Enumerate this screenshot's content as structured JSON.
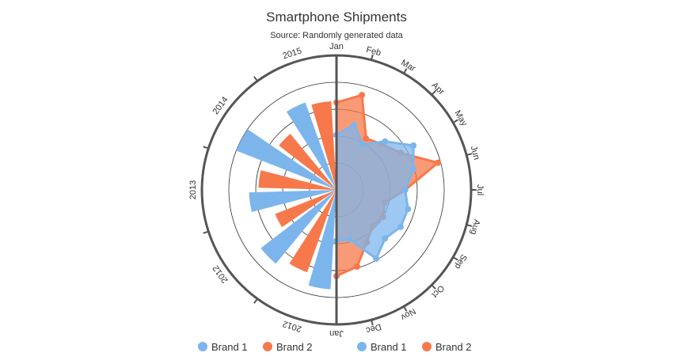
{
  "chart_data": [
    {
      "type": "polar-bar",
      "title": "Smartphone Shipments",
      "subtitle": "Source: Randomly generated data",
      "categories": [
        "2012",
        "2012",
        "2013",
        "2014",
        "2015"
      ],
      "series": [
        {
          "name": "Brand 1",
          "color": "#7cb5ec",
          "values": [
            74,
            71,
            65,
            80,
            69
          ]
        },
        {
          "name": "Brand 2",
          "color": "#f7784a",
          "values": [
            65,
            49,
            58,
            54,
            66
          ]
        }
      ],
      "rlim": [
        0,
        100
      ],
      "rticks": [
        20,
        40,
        60,
        80
      ],
      "grid": true
    },
    {
      "type": "polar-area",
      "categories": [
        "Jan",
        "Feb",
        "Mar",
        "Apr",
        "May",
        "Jun",
        "Jul",
        "Aug",
        "Sep",
        "Oct",
        "Nov",
        "Dec",
        "Jan"
      ],
      "series": [
        {
          "name": "Brand 2",
          "color": "#f7784a",
          "values": [
            65,
            73,
            44,
            48,
            55,
            78,
            51,
            37,
            40,
            38,
            45,
            59,
            64
          ]
        },
        {
          "name": "Brand 1",
          "color": "#7cb5ec",
          "values": [
            41,
            50,
            39,
            51,
            66,
            59,
            51,
            55,
            55,
            51,
            59,
            38,
            38
          ]
        }
      ],
      "legend_order": [
        "Brand 1",
        "Brand 2"
      ],
      "rlim": [
        0,
        100
      ],
      "rticks": [
        20,
        40,
        60,
        80
      ],
      "grid": true
    }
  ]
}
